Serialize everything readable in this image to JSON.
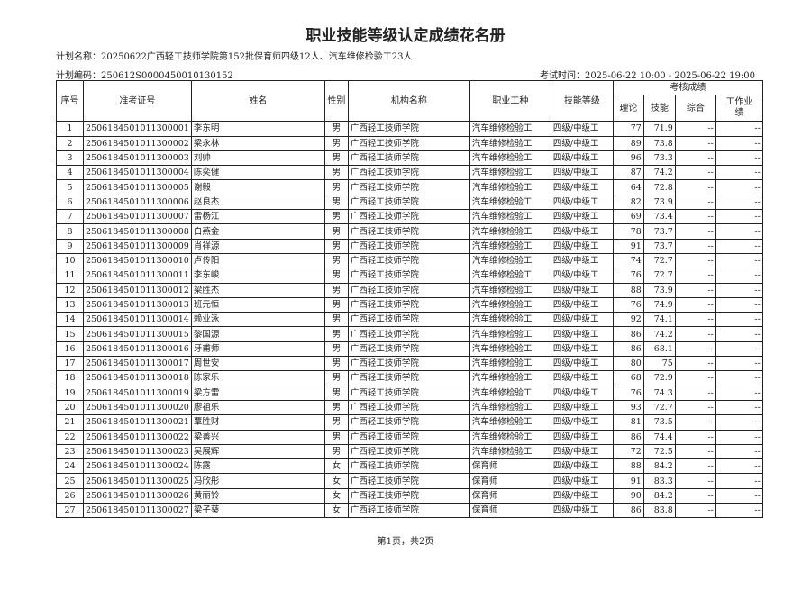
{
  "title": "职业技能等级认定成绩花名册",
  "plan_name": "计划名称：20250622广西轻工技师学院第152批保育师四级12人、汽车维修检验工23人",
  "plan_code": "计划编码：250612S0000450010130152",
  "exam_time": "考试时间：2025-06-22 10:00 - 2025-06-22 19:00",
  "headers": {
    "seq": "序号",
    "ticket": "准考证号",
    "name": "姓名",
    "gender": "性别",
    "org": "机构名称",
    "job": "职业工种",
    "level": "技能等级",
    "scores": "考核成绩",
    "theory": "理论",
    "skill": "技能",
    "overall": "综合",
    "work": "工作业绩"
  },
  "rows": [
    [
      "1",
      "2506184501011300001",
      "李东明",
      "男",
      "广西轻工技师学院",
      "汽车维修检验工",
      "四级/中级工",
      "77",
      "71.9",
      "--",
      "--"
    ],
    [
      "2",
      "2506184501011300002",
      "梁永林",
      "男",
      "广西轻工技师学院",
      "汽车维修检验工",
      "四级/中级工",
      "89",
      "73.8",
      "--",
      "--"
    ],
    [
      "3",
      "2506184501011300003",
      "刘帅",
      "男",
      "广西轻工技师学院",
      "汽车维修检验工",
      "四级/中级工",
      "96",
      "73.3",
      "--",
      "--"
    ],
    [
      "4",
      "2506184501011300004",
      "陈奕健",
      "男",
      "广西轻工技师学院",
      "汽车维修检验工",
      "四级/中级工",
      "87",
      "74.2",
      "--",
      "--"
    ],
    [
      "5",
      "2506184501011300005",
      "谢毅",
      "男",
      "广西轻工技师学院",
      "汽车维修检验工",
      "四级/中级工",
      "64",
      "72.8",
      "--",
      "--"
    ],
    [
      "6",
      "2506184501011300006",
      "赵良杰",
      "男",
      "广西轻工技师学院",
      "汽车维修检验工",
      "四级/中级工",
      "82",
      "73.9",
      "--",
      "--"
    ],
    [
      "7",
      "2506184501011300007",
      "雷杨江",
      "男",
      "广西轻工技师学院",
      "汽车维修检验工",
      "四级/中级工",
      "69",
      "73.4",
      "--",
      "--"
    ],
    [
      "8",
      "2506184501011300008",
      "白燕金",
      "男",
      "广西轻工技师学院",
      "汽车维修检验工",
      "四级/中级工",
      "78",
      "73.7",
      "--",
      "--"
    ],
    [
      "9",
      "2506184501011300009",
      "肖祥源",
      "男",
      "广西轻工技师学院",
      "汽车维修检验工",
      "四级/中级工",
      "91",
      "73.7",
      "--",
      "--"
    ],
    [
      "10",
      "2506184501011300010",
      "卢传阳",
      "男",
      "广西轻工技师学院",
      "汽车维修检验工",
      "四级/中级工",
      "74",
      "72.7",
      "--",
      "--"
    ],
    [
      "11",
      "2506184501011300011",
      "李东峻",
      "男",
      "广西轻工技师学院",
      "汽车维修检验工",
      "四级/中级工",
      "76",
      "72.7",
      "--",
      "--"
    ],
    [
      "12",
      "2506184501011300012",
      "梁胜杰",
      "男",
      "广西轻工技师学院",
      "汽车维修检验工",
      "四级/中级工",
      "88",
      "73.9",
      "--",
      "--"
    ],
    [
      "13",
      "2506184501011300013",
      "班元恒",
      "男",
      "广西轻工技师学院",
      "汽车维修检验工",
      "四级/中级工",
      "76",
      "74.9",
      "--",
      "--"
    ],
    [
      "14",
      "2506184501011300014",
      "赖业泳",
      "男",
      "广西轻工技师学院",
      "汽车维修检验工",
      "四级/中级工",
      "92",
      "74.1",
      "--",
      "--"
    ],
    [
      "15",
      "2506184501011300015",
      "黎国源",
      "男",
      "广西轻工技师学院",
      "汽车维修检验工",
      "四级/中级工",
      "86",
      "74.2",
      "--",
      "--"
    ],
    [
      "16",
      "2506184501011300016",
      "牙甫师",
      "男",
      "广西轻工技师学院",
      "汽车维修检验工",
      "四级/中级工",
      "86",
      "68.1",
      "--",
      "--"
    ],
    [
      "17",
      "2506184501011300017",
      "周世安",
      "男",
      "广西轻工技师学院",
      "汽车维修检验工",
      "四级/中级工",
      "80",
      "75",
      "--",
      "--"
    ],
    [
      "18",
      "2506184501011300018",
      "陈家乐",
      "男",
      "广西轻工技师学院",
      "汽车维修检验工",
      "四级/中级工",
      "68",
      "72.9",
      "--",
      "--"
    ],
    [
      "19",
      "2506184501011300019",
      "梁方雷",
      "男",
      "广西轻工技师学院",
      "汽车维修检验工",
      "四级/中级工",
      "76",
      "74.3",
      "--",
      "--"
    ],
    [
      "20",
      "2506184501011300020",
      "廖祖乐",
      "男",
      "广西轻工技师学院",
      "汽车维修检验工",
      "四级/中级工",
      "93",
      "72.7",
      "--",
      "--"
    ],
    [
      "21",
      "2506184501011300021",
      "覃胜财",
      "男",
      "广西轻工技师学院",
      "汽车维修检验工",
      "四级/中级工",
      "81",
      "73.5",
      "--",
      "--"
    ],
    [
      "22",
      "2506184501011300022",
      "梁善兴",
      "男",
      "广西轻工技师学院",
      "汽车维修检验工",
      "四级/中级工",
      "86",
      "74.4",
      "--",
      "--"
    ],
    [
      "23",
      "2506184501011300023",
      "吴展辉",
      "男",
      "广西轻工技师学院",
      "汽车维修检验工",
      "四级/中级工",
      "72",
      "72.5",
      "--",
      "--"
    ],
    [
      "24",
      "2506184501011300024",
      "陈露",
      "女",
      "广西轻工技师学院",
      "保育师",
      "四级/中级工",
      "88",
      "84.2",
      "--",
      "--"
    ],
    [
      "25",
      "2506184501011300025",
      "冯欣彤",
      "女",
      "广西轻工技师学院",
      "保育师",
      "四级/中级工",
      "91",
      "83.3",
      "--",
      "--"
    ],
    [
      "26",
      "2506184501011300026",
      "黄丽铃",
      "女",
      "广西轻工技师学院",
      "保育师",
      "四级/中级工",
      "90",
      "84.2",
      "--",
      "--"
    ],
    [
      "27",
      "2506184501011300027",
      "梁子葵",
      "女",
      "广西轻工技师学院",
      "保育师",
      "四级/中级工",
      "86",
      "83.8",
      "--",
      "--"
    ]
  ],
  "footer": "第1页，共2页"
}
